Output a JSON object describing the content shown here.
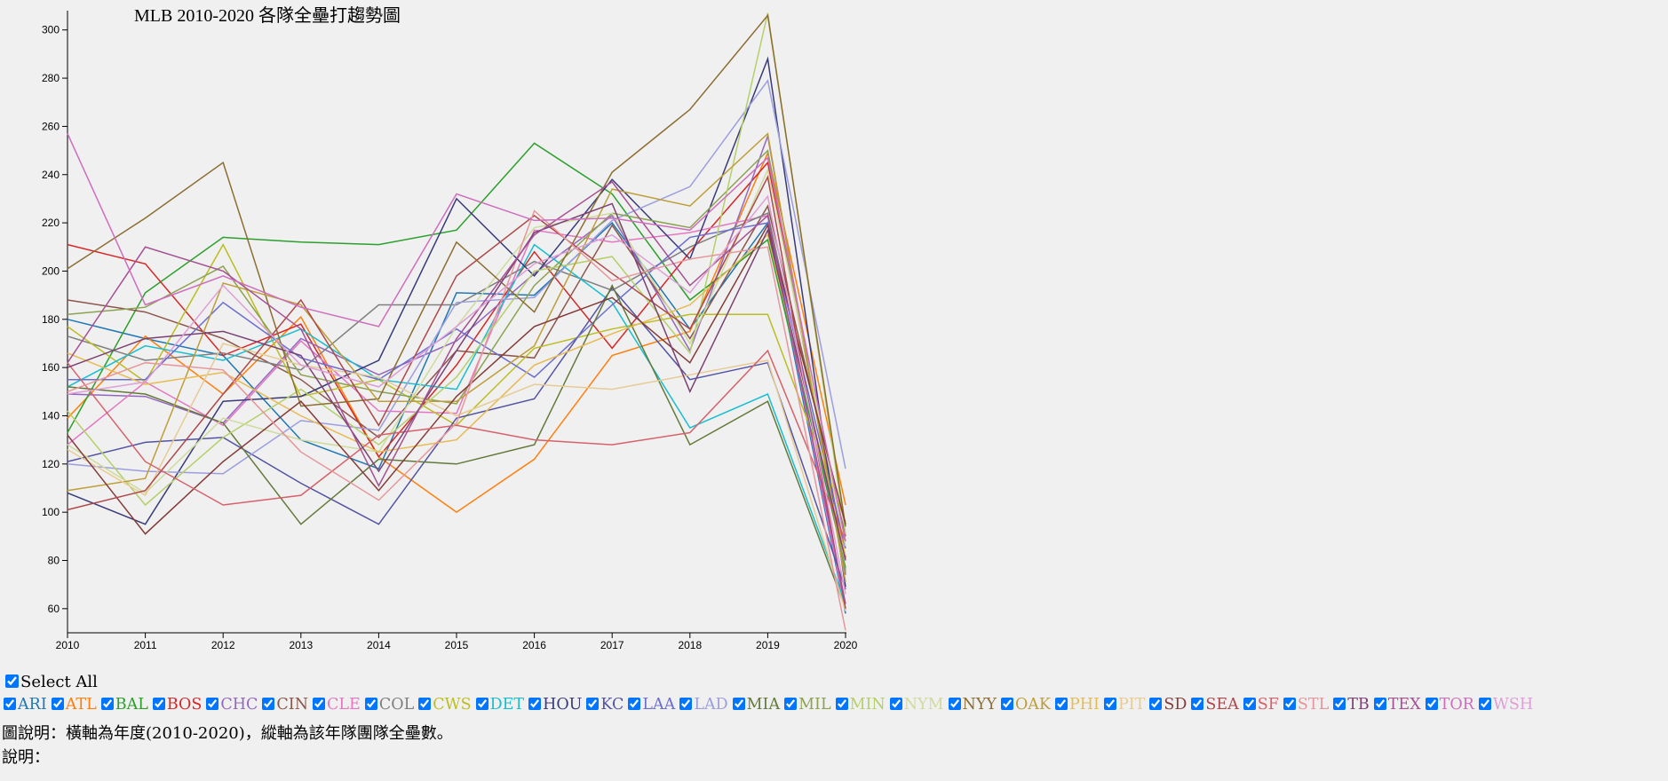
{
  "chart_data": {
    "type": "line",
    "title": "MLB 2010-2020 各隊全壘打趨勢圖",
    "xlabel": "",
    "ylabel": "",
    "x": [
      2010,
      2011,
      2012,
      2013,
      2014,
      2015,
      2016,
      2017,
      2018,
      2019,
      2020
    ],
    "x_ticks": [
      "2010",
      "2011",
      "2012",
      "2013",
      "2014",
      "2015",
      "2016",
      "2017",
      "2018",
      "2019",
      "2020"
    ],
    "y_ticks": [
      "60",
      "80",
      "100",
      "120",
      "140",
      "160",
      "180",
      "200",
      "220",
      "240",
      "260",
      "280",
      "300"
    ],
    "ylim": [
      50,
      308
    ],
    "grid": false,
    "series": [
      {
        "name": "ARI",
        "color": "#1f77b4",
        "values": [
          180,
          172,
          165,
          130,
          118,
          191,
          190,
          220,
          176,
          220,
          58
        ]
      },
      {
        "name": "ATL",
        "color": "#ff7f0e",
        "values": [
          139,
          173,
          149,
          181,
          123,
          100,
          122,
          165,
          175,
          249,
          103
        ]
      },
      {
        "name": "BAL",
        "color": "#2ca02c",
        "values": [
          133,
          191,
          214,
          212,
          211,
          217,
          253,
          232,
          188,
          213,
          77
        ]
      },
      {
        "name": "BOS",
        "color": "#d62728",
        "values": [
          211,
          203,
          165,
          178,
          123,
          161,
          208,
          168,
          208,
          245,
          81
        ]
      },
      {
        "name": "CHC",
        "color": "#9467bd",
        "values": [
          149,
          148,
          137,
          172,
          157,
          171,
          199,
          223,
          167,
          256,
          74
        ]
      },
      {
        "name": "CIN",
        "color": "#8c564b",
        "values": [
          188,
          183,
          172,
          155,
          131,
          167,
          164,
          219,
          172,
          227,
          90
        ]
      },
      {
        "name": "CLE",
        "color": "#e377c2",
        "values": [
          128,
          154,
          136,
          171,
          142,
          141,
          217,
          212,
          216,
          223,
          59
        ]
      },
      {
        "name": "COL",
        "color": "#7f7f7f",
        "values": [
          173,
          163,
          166,
          159,
          186,
          186,
          204,
          192,
          210,
          224,
          76
        ]
      },
      {
        "name": "CWS",
        "color": "#bcbd22",
        "values": [
          177,
          154,
          211,
          148,
          155,
          136,
          168,
          176,
          182,
          182,
          96
        ]
      },
      {
        "name": "DET",
        "color": "#17becf",
        "values": [
          152,
          169,
          163,
          176,
          155,
          151,
          211,
          187,
          135,
          149,
          62
        ]
      },
      {
        "name": "HOU",
        "color": "#393b79",
        "values": [
          108,
          95,
          146,
          148,
          163,
          230,
          198,
          238,
          205,
          288,
          69
        ]
      },
      {
        "name": "KC",
        "color": "#5254a3",
        "values": [
          121,
          129,
          131,
          112,
          95,
          139,
          147,
          193,
          155,
          162,
          68
        ]
      },
      {
        "name": "LAA",
        "color": "#6b6ecf",
        "values": [
          155,
          155,
          187,
          164,
          155,
          176,
          156,
          186,
          214,
          220,
          85
        ]
      },
      {
        "name": "LAD",
        "color": "#9c9ede",
        "values": [
          120,
          117,
          116,
          138,
          134,
          187,
          189,
          221,
          235,
          279,
          118
        ]
      },
      {
        "name": "MIA",
        "color": "#637939",
        "values": [
          152,
          149,
          137,
          95,
          122,
          120,
          128,
          194,
          128,
          146,
          60
        ]
      },
      {
        "name": "MIL",
        "color": "#8ca252",
        "values": [
          182,
          185,
          202,
          157,
          150,
          145,
          194,
          224,
          218,
          250,
          75
        ]
      },
      {
        "name": "MIN",
        "color": "#b5cf6b",
        "values": [
          142,
          103,
          131,
          151,
          128,
          156,
          200,
          206,
          166,
          307,
          91
        ]
      },
      {
        "name": "NYM",
        "color": "#cedb9c",
        "values": [
          128,
          108,
          139,
          130,
          125,
          177,
          218,
          224,
          170,
          242,
          86
        ]
      },
      {
        "name": "NYY",
        "color": "#8c6d31",
        "values": [
          201,
          222,
          245,
          144,
          147,
          212,
          183,
          241,
          267,
          306,
          94
        ]
      },
      {
        "name": "OAK",
        "color": "#bd9e39",
        "values": [
          109,
          114,
          195,
          186,
          146,
          146,
          169,
          234,
          227,
          257,
          71
        ]
      },
      {
        "name": "PHI",
        "color": "#e7ba52",
        "values": [
          166,
          153,
          158,
          140,
          125,
          130,
          161,
          174,
          186,
          215,
          82
        ]
      },
      {
        "name": "PIT",
        "color": "#e7cb94",
        "values": [
          126,
          107,
          170,
          161,
          156,
          140,
          153,
          151,
          157,
          163,
          59
        ]
      },
      {
        "name": "SD",
        "color": "#843c39",
        "values": [
          132,
          91,
          121,
          146,
          109,
          148,
          177,
          189,
          162,
          219,
          95
        ]
      },
      {
        "name": "SEA",
        "color": "#ad494a",
        "values": [
          101,
          109,
          149,
          188,
          136,
          198,
          223,
          199,
          176,
          239,
          60
        ]
      },
      {
        "name": "SF",
        "color": "#d6616b",
        "values": [
          162,
          121,
          103,
          107,
          132,
          136,
          130,
          128,
          133,
          167,
          88
        ]
      },
      {
        "name": "STL",
        "color": "#e7969c",
        "values": [
          150,
          162,
          159,
          125,
          105,
          137,
          225,
          196,
          205,
          210,
          51
        ]
      },
      {
        "name": "TB",
        "color": "#7b4173",
        "values": [
          160,
          172,
          175,
          165,
          117,
          167,
          216,
          228,
          150,
          217,
          80
        ]
      },
      {
        "name": "TEX",
        "color": "#a55194",
        "values": [
          162,
          210,
          200,
          176,
          111,
          172,
          215,
          237,
          194,
          223,
          62
        ]
      },
      {
        "name": "TOR",
        "color": "#ce6dbd",
        "values": [
          257,
          186,
          198,
          185,
          177,
          232,
          221,
          222,
          217,
          247,
          88
        ]
      },
      {
        "name": "WSH",
        "color": "#de9ed6",
        "values": [
          149,
          154,
          194,
          161,
          152,
          177,
          203,
          215,
          191,
          231,
          66
        ]
      }
    ]
  },
  "controls": {
    "select_all_label": "Select All",
    "caption": "圖說明：橫軸為年度(2010-2020)，縱軸為該年隊團隊全壘數。",
    "note": "說明："
  }
}
